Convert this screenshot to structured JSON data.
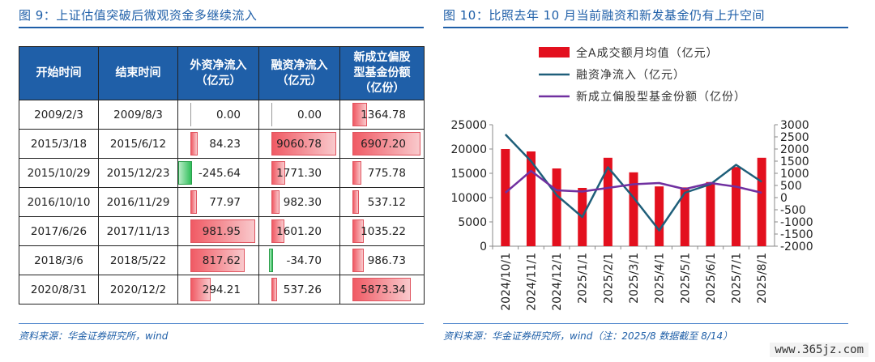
{
  "left": {
    "title": "图 9：上证估值突破后微观资金多继续流入",
    "source": "资料来源：华金证券研究所，wind",
    "headers": [
      "开始时间",
      "结束时间",
      "外资净流入\n（亿元）",
      "融资净流入\n（亿元）",
      "新成立偏股\n型基金份额\n（亿份）"
    ],
    "rows": [
      [
        "2009/2/3",
        "2009/8/3",
        "0.00",
        "0.00",
        "1364.78"
      ],
      [
        "2015/3/18",
        "2015/6/12",
        "84.23",
        "9060.78",
        "6907.20"
      ],
      [
        "2015/10/29",
        "2015/12/23",
        "-245.64",
        "1771.30",
        "775.78"
      ],
      [
        "2016/10/10",
        "2016/11/29",
        "77.97",
        "982.30",
        "537.12"
      ],
      [
        "2017/6/26",
        "2017/11/13",
        "981.95",
        "1601.20",
        "1035.22"
      ],
      [
        "2018/3/6",
        "2018/5/22",
        "817.62",
        "-34.70",
        "986.73"
      ],
      [
        "2020/8/31",
        "2020/12/2",
        "294.21",
        "537.26",
        "5873.34"
      ]
    ]
  },
  "right": {
    "title": "图 10：比照去年 10 月当前融资和新发基金仍有上升空间",
    "source": "资料来源：华金证券研究所，wind（注：2025/8 数据截至 8/14）"
  },
  "watermark": "www.365jz.com",
  "chart_data": {
    "type": "bar",
    "categories": [
      "2024/10/1",
      "2024/11/1",
      "2024/12/1",
      "2025/1/1",
      "2025/2/1",
      "2025/3/1",
      "2025/4/1",
      "2025/5/1",
      "2025/6/1",
      "2025/7/1",
      "2025/8/1"
    ],
    "series": [
      {
        "name": "全A成交额月均值（亿元）",
        "type": "bar",
        "axis": "left",
        "color": "#e3101e",
        "values": [
          20000,
          19500,
          16000,
          12000,
          18200,
          15200,
          12300,
          12100,
          13200,
          16300,
          18200
        ]
      },
      {
        "name": "融资净流入（亿元）",
        "type": "line",
        "axis": "right",
        "color": "#1f5f7a",
        "values": [
          2600,
          1500,
          100,
          -800,
          1250,
          0,
          -1350,
          200,
          550,
          1350,
          650
        ]
      },
      {
        "name": "新成立偏股型基金份额（亿份）",
        "type": "line",
        "axis": "right",
        "color": "#7030a0",
        "values": [
          200,
          1100,
          300,
          250,
          400,
          550,
          600,
          350,
          600,
          450,
          200
        ]
      }
    ],
    "yleft": {
      "ticks": [
        0,
        5000,
        10000,
        15000,
        20000,
        25000
      ],
      "ylim": [
        0,
        25000
      ]
    },
    "yright": {
      "ticks": [
        -2000,
        -1500,
        -1000,
        -500,
        0,
        500,
        1000,
        1500,
        2000,
        2500,
        3000
      ],
      "ylim": [
        -2000,
        3000
      ]
    },
    "legend": "top-left",
    "grid": false
  },
  "colors": {
    "accent": "#1f5fa8",
    "header_bg": "#1f5fa8"
  }
}
